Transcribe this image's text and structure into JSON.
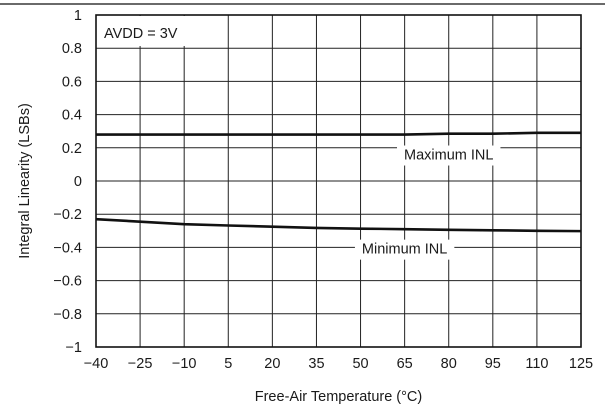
{
  "chart_data": {
    "type": "line",
    "xlabel": "Free-Air Temperature (°C)",
    "ylabel": "Integral Linearity (LSBs)",
    "x_ticks": [
      -40,
      -25,
      -10,
      5,
      20,
      35,
      50,
      65,
      80,
      95,
      110,
      125
    ],
    "y_ticks": [
      -1,
      -0.8,
      -0.6,
      -0.4,
      -0.2,
      0,
      0.2,
      0.4,
      0.6,
      0.8,
      1
    ],
    "xlim": [
      -40,
      125
    ],
    "ylim": [
      -1,
      1
    ],
    "grid": true,
    "annotations": [
      {
        "text": "AVDD = 3V",
        "position": "top-left"
      }
    ],
    "series": [
      {
        "name": "Maximum INL",
        "x": [
          -40,
          -25,
          -10,
          5,
          20,
          35,
          50,
          65,
          80,
          95,
          110,
          125
        ],
        "y": [
          0.28,
          0.28,
          0.28,
          0.28,
          0.28,
          0.28,
          0.28,
          0.28,
          0.285,
          0.285,
          0.29,
          0.29
        ]
      },
      {
        "name": "Minimum INL",
        "x": [
          -40,
          -25,
          -10,
          5,
          20,
          35,
          50,
          65,
          80,
          95,
          110,
          125
        ],
        "y": [
          -0.23,
          -0.245,
          -0.26,
          -0.268,
          -0.275,
          -0.283,
          -0.287,
          -0.29,
          -0.294,
          -0.297,
          -0.3,
          -0.302
        ]
      }
    ]
  }
}
